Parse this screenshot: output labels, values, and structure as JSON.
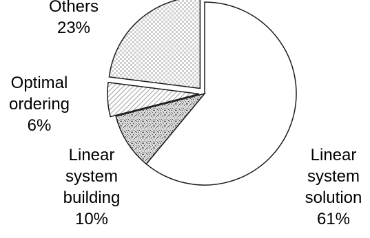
{
  "chart_data": {
    "type": "pie",
    "exploded": true,
    "start": "top",
    "direction": "clockwise",
    "slices": [
      {
        "label_lines": [
          "Linear",
          "system",
          "solution"
        ],
        "percent_label": "61%",
        "value": 61,
        "fill": "plain",
        "color": "#ffffff"
      },
      {
        "label_lines": [
          "Linear",
          "system",
          "building"
        ],
        "percent_label": "10%",
        "value": 10,
        "fill": "speckled",
        "color": "#9a9a9a"
      },
      {
        "label_lines": [
          "Optimal",
          "ordering"
        ],
        "percent_label": "6%",
        "value": 6,
        "fill": "diagonal-hatch",
        "color": "#bdbdbd"
      },
      {
        "label_lines": [
          "Others"
        ],
        "percent_label": "23%",
        "value": 23,
        "fill": "checkered",
        "color": "#d6d6d6"
      }
    ]
  }
}
